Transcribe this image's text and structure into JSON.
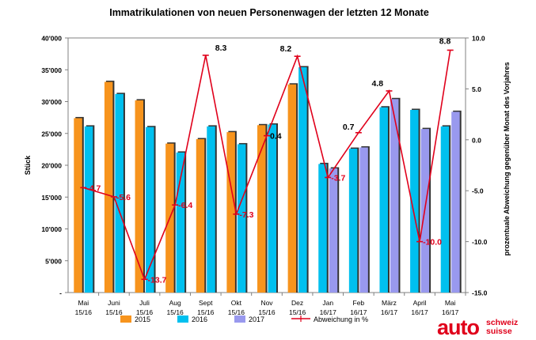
{
  "chart_data": {
    "type": "bar+line",
    "title": "Immatrikulationen von neuen Personenwagen der letzten 12 Monate",
    "ylabel": "Stück",
    "y2label": "prozentuale Abweichung gegenüber Monat des Vorjahres",
    "ylim": [
      0,
      40000
    ],
    "y2lim": [
      -15,
      10
    ],
    "yticks": [
      "-",
      "5'000",
      "10'000",
      "15'000",
      "20'000",
      "25'000",
      "30'000",
      "35'000",
      "40'000"
    ],
    "y2ticks": [
      "-15.0",
      "-10.0",
      "-5.0",
      "0.0",
      "5.0",
      "10.0"
    ],
    "categories": [
      {
        "l1": "Mai",
        "l2": "15/16"
      },
      {
        "l1": "Juni",
        "l2": "15/16"
      },
      {
        "l1": "Juli",
        "l2": "15/16"
      },
      {
        "l1": "Aug",
        "l2": "15/16"
      },
      {
        "l1": "Sept",
        "l2": "15/16"
      },
      {
        "l1": "Okt",
        "l2": "15/16"
      },
      {
        "l1": "Nov",
        "l2": "15/16"
      },
      {
        "l1": "Dez",
        "l2": "15/16"
      },
      {
        "l1": "Jan",
        "l2": "16/17"
      },
      {
        "l1": "Feb",
        "l2": "16/17"
      },
      {
        "l1": "März",
        "l2": "16/17"
      },
      {
        "l1": "April",
        "l2": "16/17"
      },
      {
        "l1": "Mai",
        "l2": "16/17"
      }
    ],
    "series": [
      {
        "name": "2015",
        "color": "#f7941d",
        "values": [
          27400,
          33100,
          30200,
          23400,
          24100,
          25200,
          26300,
          32700,
          null,
          null,
          null,
          null,
          null
        ]
      },
      {
        "name": "2016",
        "color": "#00c0ef",
        "values": [
          26100,
          31200,
          26000,
          22000,
          26100,
          23300,
          26400,
          35400,
          20200,
          22600,
          29100,
          28700,
          26100
        ]
      },
      {
        "name": "2017",
        "color": "#9999ee",
        "values": [
          null,
          null,
          null,
          null,
          null,
          null,
          null,
          null,
          19500,
          22800,
          30400,
          25700,
          28400
        ]
      },
      {
        "name": "Abweichung in %",
        "color": "#e0001b",
        "axis": "right",
        "values": [
          -4.7,
          -5.6,
          -13.7,
          -6.4,
          8.3,
          -7.3,
          0.4,
          8.2,
          -3.7,
          0.7,
          4.8,
          -10.0,
          8.8
        ],
        "labels": [
          "-4.7",
          "-5.6",
          "-13.7",
          "-6.4",
          "8.3",
          "-7.3",
          "0.4",
          "8.2",
          "-3.7",
          "0.7",
          "4.8",
          "-10.0",
          "8.8"
        ],
        "label_colors": [
          "#e0001b",
          "#e0001b",
          "#e0001b",
          "#e0001b",
          "#000000",
          "#e0001b",
          "#000000",
          "#000000",
          "#e0001b",
          "#000000",
          "#000000",
          "#e0001b",
          "#000000"
        ]
      }
    ],
    "legend": [
      "2015",
      "2016",
      "2017",
      "Abweichung in %"
    ]
  },
  "brand": {
    "main": "auto",
    "line1": "schweiz",
    "line2": "suisse",
    "color": "#e0001b"
  }
}
